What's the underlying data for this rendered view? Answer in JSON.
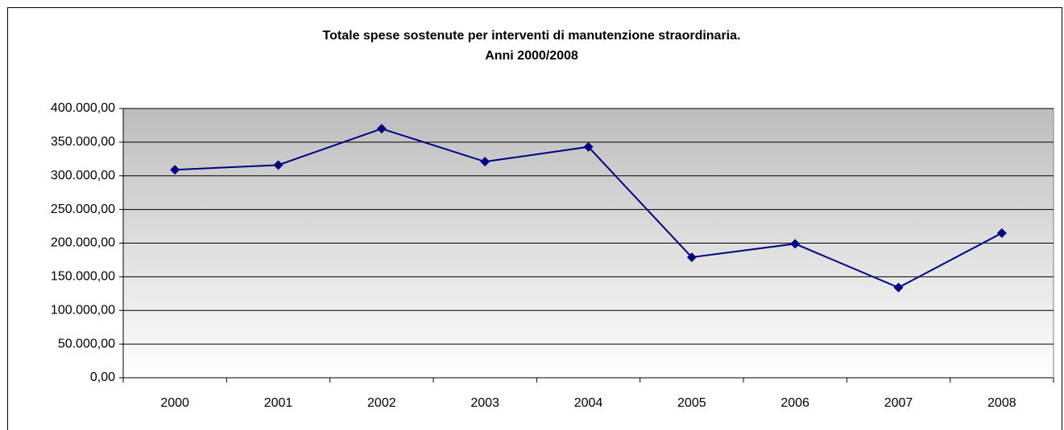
{
  "chart_data": {
    "type": "line",
    "title": "Totale spese sostenute per interventi di manutenzione straordinaria.",
    "subtitle": "Anni 2000/2008",
    "categories": [
      "2000",
      "2001",
      "2002",
      "2003",
      "2004",
      "2005",
      "2006",
      "2007",
      "2008"
    ],
    "series": [
      {
        "name": "Totale spese",
        "color": "#000080",
        "values": [
          309000,
          316000,
          370000,
          321000,
          343000,
          179000,
          199000,
          134000,
          215000
        ]
      }
    ],
    "ylim": [
      0,
      400000
    ],
    "yticks": [
      {
        "value": 0,
        "label": "0,00"
      },
      {
        "value": 50000,
        "label": "50.000,00"
      },
      {
        "value": 100000,
        "label": "100.000,00"
      },
      {
        "value": 150000,
        "label": "150.000,00"
      },
      {
        "value": 200000,
        "label": "200.000,00"
      },
      {
        "value": 250000,
        "label": "250.000,00"
      },
      {
        "value": 300000,
        "label": "300.000,00"
      },
      {
        "value": 350000,
        "label": "350.000,00"
      },
      {
        "value": 400000,
        "label": "400.000,00"
      }
    ],
    "grid": true
  }
}
